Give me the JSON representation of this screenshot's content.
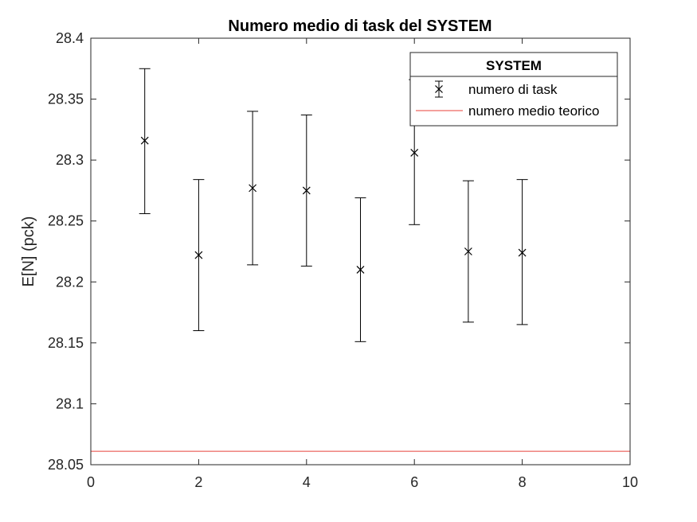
{
  "chart_data": {
    "type": "scatter",
    "title": "Numero medio di task del SYSTEM",
    "xlabel": "",
    "ylabel": "E[N] (pck)",
    "xlim": [
      0,
      10
    ],
    "ylim": [
      28.05,
      28.4
    ],
    "xticks": [
      0,
      2,
      4,
      6,
      8,
      10
    ],
    "yticks": [
      28.05,
      28.1,
      28.15,
      28.2,
      28.25,
      28.3,
      28.35,
      28.4
    ],
    "xtick_labels": [
      "0",
      "2",
      "4",
      "6",
      "8",
      "10"
    ],
    "ytick_labels": [
      "28.05",
      "28.1",
      "28.15",
      "28.2",
      "28.25",
      "28.3",
      "28.35",
      "28.4"
    ],
    "grid": false,
    "legend": {
      "title": "SYSTEM",
      "placement": "top-right",
      "entries": [
        "numero di task",
        "numero medio teorico"
      ]
    },
    "series": [
      {
        "name": "numero di task",
        "kind": "errorbar",
        "marker": "x",
        "color": "#000000",
        "x": [
          1,
          2,
          3,
          4,
          5,
          6,
          7,
          8
        ],
        "y": [
          28.316,
          28.222,
          28.277,
          28.275,
          28.21,
          28.306,
          28.225,
          28.224
        ],
        "lower": [
          28.256,
          28.16,
          28.214,
          28.213,
          28.151,
          28.247,
          28.167,
          28.165
        ],
        "upper": [
          28.375,
          28.284,
          28.34,
          28.337,
          28.269,
          28.366,
          28.283,
          28.284
        ]
      },
      {
        "name": "numero medio teorico",
        "kind": "hline",
        "color": "#e8413a",
        "y": 28.061
      }
    ]
  }
}
